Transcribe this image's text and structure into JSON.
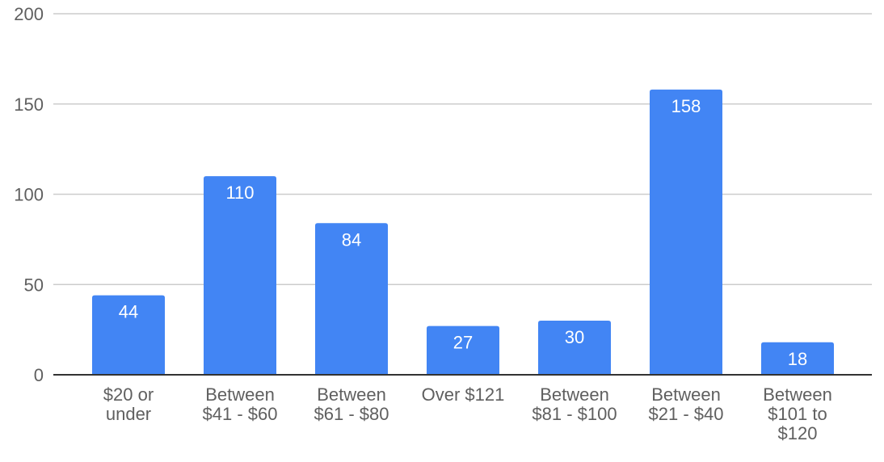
{
  "chart_data": {
    "type": "bar",
    "categories": [
      [
        "$20 or",
        "under"
      ],
      [
        "Between",
        "$41 - $60"
      ],
      [
        "Between",
        "$61 - $80"
      ],
      [
        "Over $121"
      ],
      [
        "Between",
        "$81 - $100"
      ],
      [
        "Between",
        "$21 - $40"
      ],
      [
        "Between",
        "$101 to",
        "$120"
      ]
    ],
    "values": [
      44,
      110,
      84,
      27,
      30,
      158,
      18
    ],
    "data_labels": [
      "44",
      "110",
      "84",
      "27",
      "30",
      "158",
      "18"
    ],
    "title": "",
    "xlabel": "",
    "ylabel": "",
    "ylim": [
      0,
      200
    ],
    "yticks": [
      0,
      50,
      100,
      150,
      200
    ],
    "ytick_labels": [
      "0",
      "50",
      "100",
      "150",
      "200"
    ],
    "grid": true,
    "legend": "none",
    "colors": {
      "bar": "#4285f4",
      "grid": "#cccccc",
      "axis": "#333333",
      "label": "#5f5f5f",
      "data_label": "#ffffff"
    }
  }
}
